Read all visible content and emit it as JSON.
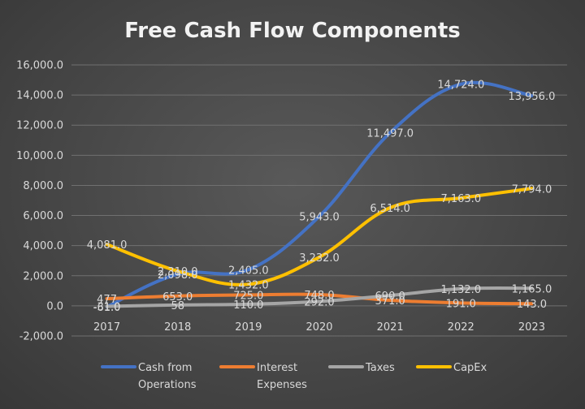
{
  "chart_data": {
    "type": "line",
    "title": "Free Cash Flow Components",
    "xlabel": "",
    "ylabel": "",
    "categories": [
      "2017",
      "2018",
      "2019",
      "2020",
      "2021",
      "2022",
      "2023"
    ],
    "ylim": [
      -2000,
      16000
    ],
    "yticks": [
      -2000,
      0,
      2000,
      4000,
      6000,
      8000,
      10000,
      12000,
      14000,
      16000
    ],
    "ytick_labels": [
      "-2,000.0",
      "0.0",
      "2,000.0",
      "4,000.0",
      "6,000.0",
      "8,000.0",
      "10,000.0",
      "12,000.0",
      "14,000.0",
      "16,000.0"
    ],
    "grid": true,
    "legend": "bottom",
    "series": [
      {
        "name": "Cash from Operations",
        "legend_lines": [
          "Cash from",
          "Operations"
        ],
        "color": "#4472C4",
        "values": [
          -61,
          2098,
          2405,
          5943,
          11497,
          14724,
          13956
        ],
        "labels": [
          "-61.0",
          "2,098.0",
          "2,405.0",
          "5,943.0",
          "11,497.0",
          "14,724.0",
          "13,956.0"
        ]
      },
      {
        "name": "Interest Expenses",
        "legend_lines": [
          "Interest",
          "Expenses"
        ],
        "color": "#ED7D31",
        "values": [
          477,
          653,
          725,
          748,
          371,
          191,
          143
        ],
        "labels": [
          "477",
          "653.0",
          "725.0",
          "748.0",
          "371.0",
          "191.0",
          "143.0"
        ]
      },
      {
        "name": "Taxes",
        "legend_lines": [
          "Taxes"
        ],
        "color": "#A5A5A5",
        "values": [
          -31,
          58,
          110,
          292,
          690,
          1132,
          1165
        ],
        "labels": [
          "-31.0",
          "58",
          "110.0",
          "292.0",
          "690.0",
          "1,132.0",
          "1,165.0"
        ]
      },
      {
        "name": "CapEx",
        "legend_lines": [
          "CapEx"
        ],
        "color": "#FFC000",
        "values": [
          4081,
          2310,
          1432,
          3232,
          6514,
          7163,
          7794
        ],
        "labels": [
          "4,081.0",
          "2,310.0",
          "1,432.0",
          "3,232.0",
          "6,514.0",
          "7,163.0",
          "7,794.0"
        ]
      }
    ]
  }
}
